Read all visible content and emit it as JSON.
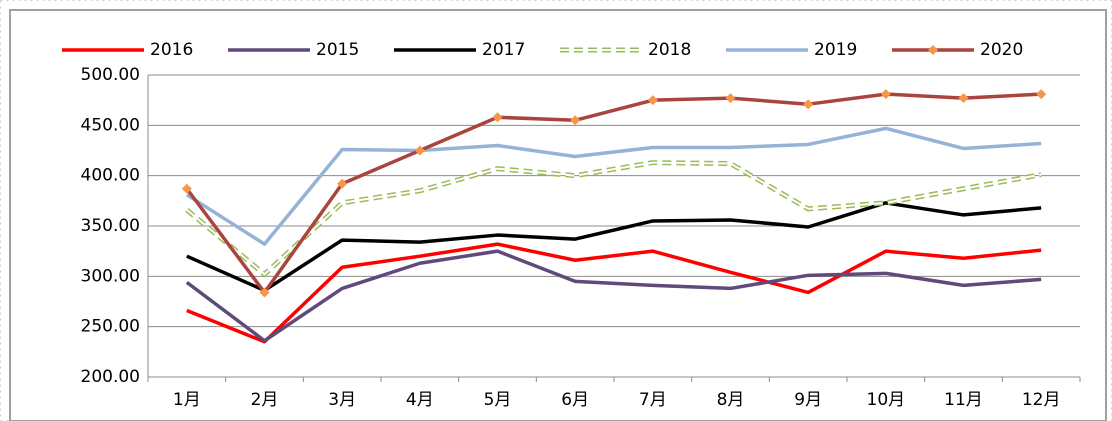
{
  "chart_data": {
    "type": "line",
    "categories": [
      "1月",
      "2月",
      "3月",
      "4月",
      "5月",
      "6月",
      "7月",
      "8月",
      "9月",
      "10月",
      "11月",
      "12月"
    ],
    "series": [
      {
        "name": "2016",
        "color": "#ff0000",
        "values": [
          266,
          235,
          309,
          320,
          332,
          316,
          325,
          304,
          284,
          325,
          318,
          326
        ]
      },
      {
        "name": "2015",
        "color": "#604a7b",
        "values": [
          294,
          236,
          288,
          313,
          325,
          295,
          291,
          288,
          301,
          303,
          291,
          297
        ]
      },
      {
        "name": "2017",
        "color": "#000000",
        "values": [
          320,
          286,
          336,
          334,
          341,
          337,
          355,
          356,
          349,
          373,
          361,
          368
        ]
      },
      {
        "name": "2018",
        "color": "#9bbb59",
        "dash": true,
        "values": [
          366,
          302,
          373,
          385,
          407,
          400,
          413,
          412,
          367,
          373,
          387,
          401
        ]
      },
      {
        "name": "2019",
        "color": "#95b3d7",
        "values": [
          381,
          332,
          426,
          425,
          430,
          419,
          428,
          428,
          431,
          447,
          427,
          432
        ]
      },
      {
        "name": "2020",
        "color": "#a9443e",
        "marker": "diamond",
        "marker_color": "#f79646",
        "values": [
          387,
          284,
          392,
          425,
          458,
          455,
          475,
          477,
          471,
          481,
          477,
          481
        ]
      }
    ],
    "ylim": [
      200,
      500
    ],
    "yticks": [
      {
        "value": 200,
        "label": "200.00"
      },
      {
        "value": 250,
        "label": "250.00"
      },
      {
        "value": 300,
        "label": "300.00"
      },
      {
        "value": 350,
        "label": "350.00"
      },
      {
        "value": 400,
        "label": "400.00"
      },
      {
        "value": 450,
        "label": "450.00"
      },
      {
        "value": 500,
        "label": "500.00"
      }
    ],
    "grid": true,
    "legend": "top"
  }
}
